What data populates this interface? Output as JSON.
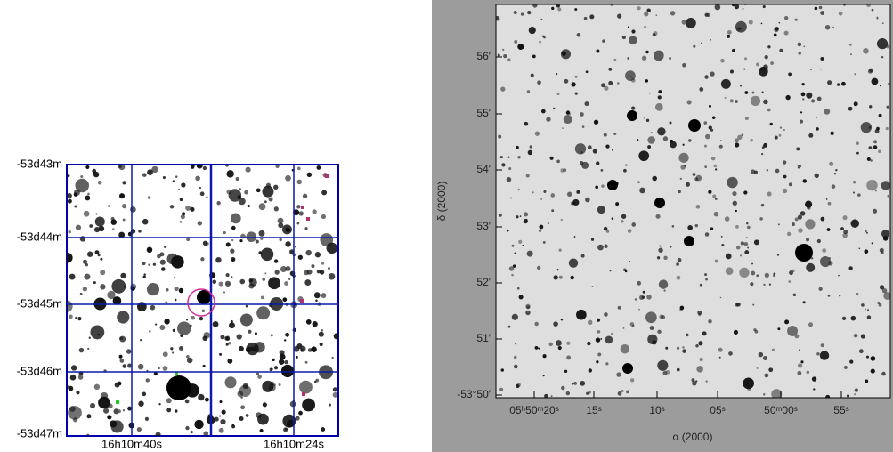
{
  "left_panel": {
    "dec_labels": [
      "-53d43m",
      "-53d44m",
      "-53d45m",
      "-53d46m",
      "-53d47m"
    ],
    "ra_labels": [
      "16h10m40s",
      "16h10m24s"
    ]
  },
  "right_panel": {
    "dec_labels": [
      "56′",
      "55′",
      "54′",
      "53′",
      "52′",
      "51′",
      "-53°50′"
    ],
    "ra_labels": [
      "05ʰ50ᵐ20ˢ",
      "15ˢ",
      "10ˢ",
      "05ˢ",
      "50ᵐ00ˢ",
      "55ˢ"
    ],
    "dec_title": "δ (2000)",
    "ra_title": "α (2000)"
  }
}
